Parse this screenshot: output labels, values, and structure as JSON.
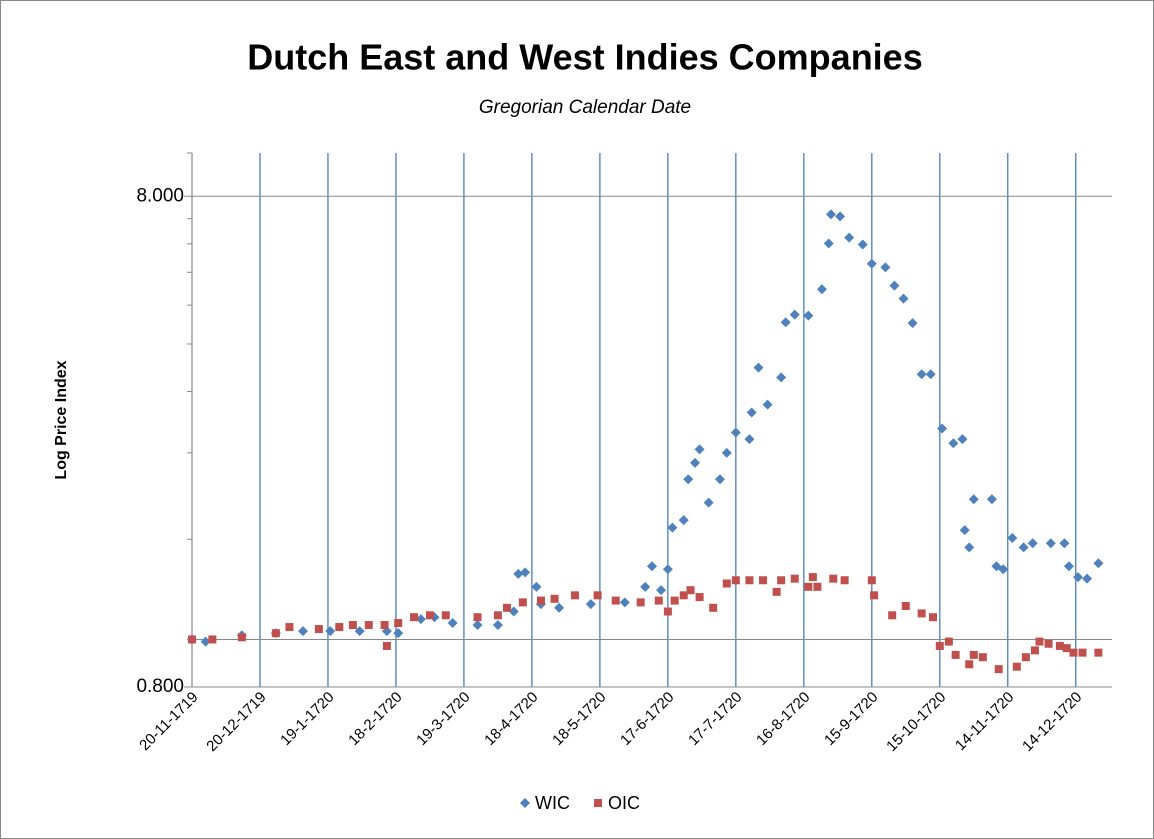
{
  "chart_data": {
    "type": "scatter",
    "title": "Dutch East and West Indies Companies",
    "subtitle": "Gregorian Calendar Date",
    "y_label": "Log Price Index",
    "log_y": true,
    "grid_x": true,
    "legend": "bottom",
    "xlim": [
      "20-11-1719",
      "30-12-1720"
    ],
    "xticks": [
      "20-11-1719",
      "20-12-1719",
      "19-1-1720",
      "18-2-1720",
      "19-3-1720",
      "18-4-1720",
      "18-5-1720",
      "17-6-1720",
      "17-7-1720",
      "16-8-1720",
      "15-9-1720",
      "15-10-1720",
      "14-11-1720",
      "14-12-1720"
    ],
    "ylim": [
      0.8,
      9.8
    ],
    "yticks": [
      {
        "value": 0.8,
        "label": "0.800"
      },
      {
        "value": 8,
        "label": "8.000"
      }
    ],
    "minor_yticks": [
      1.6,
      2.4,
      3.2,
      4,
      4.8,
      5.6,
      6.4,
      7.2
    ],
    "reference_line": 1,
    "series": [
      {
        "name": "WIC",
        "color": "#4f81bd",
        "marker": "diamond",
        "x": [
          "20-11-1719",
          "26-11-1719",
          "12-12-1719",
          "27-12-1719",
          "8-1-1720",
          "20-1-1720",
          "2-2-1720",
          "14-2-1720",
          "19-2-1720",
          "29-2-1720",
          "6-3-1720",
          "14-3-1720",
          "25-3-1720",
          "3-4-1720",
          "10-4-1720",
          "12-4-1720",
          "15-4-1720",
          "20-4-1720",
          "22-4-1720",
          "30-4-1720",
          "14-5-1720",
          "29-5-1720",
          "7-6-1720",
          "10-6-1720",
          "14-6-1720",
          "17-6-1720",
          "19-6-1720",
          "24-6-1720",
          "26-6-1720",
          "29-6-1720",
          "1-7-1720",
          "5-7-1720",
          "10-7-1720",
          "13-7-1720",
          "17-7-1720",
          "23-7-1720",
          "24-7-1720",
          "27-7-1720",
          "31-7-1720",
          "6-8-1720",
          "8-8-1720",
          "12-8-1720",
          "18-8-1720",
          "24-8-1720",
          "27-8-1720",
          "28-8-1720",
          "1-9-1720",
          "5-9-1720",
          "11-9-1720",
          "15-9-1720",
          "21-9-1720",
          "25-9-1720",
          "29-9-1720",
          "3-10-1720",
          "7-10-1720",
          "11-10-1720",
          "16-10-1720",
          "21-10-1720",
          "25-10-1720",
          "26-10-1720",
          "28-10-1720",
          "30-10-1720",
          "7-11-1720",
          "9-11-1720",
          "12-11-1720",
          "16-11-1720",
          "21-11-1720",
          "25-11-1720",
          "3-12-1720",
          "9-12-1720",
          "11-12-1720",
          "15-12-1720",
          "19-12-1720",
          "24-12-1720"
        ],
        "values": [
          1.0,
          0.99,
          1.02,
          1.03,
          1.04,
          1.04,
          1.04,
          1.04,
          1.03,
          1.1,
          1.11,
          1.08,
          1.07,
          1.07,
          1.14,
          1.36,
          1.37,
          1.28,
          1.18,
          1.16,
          1.18,
          1.19,
          1.28,
          1.41,
          1.26,
          1.39,
          1.69,
          1.75,
          2.12,
          2.29,
          2.44,
          1.9,
          2.12,
          2.4,
          2.64,
          2.56,
          2.9,
          3.58,
          3.01,
          3.42,
          4.43,
          4.59,
          4.57,
          5.17,
          6.41,
          7.35,
          7.28,
          6.59,
          6.38,
          5.83,
          5.73,
          5.26,
          4.95,
          4.41,
          3.47,
          3.47,
          2.69,
          2.51,
          2.56,
          1.67,
          1.54,
          1.93,
          1.93,
          1.41,
          1.39,
          1.61,
          1.54,
          1.57,
          1.57,
          1.57,
          1.41,
          1.34,
          1.33,
          1.43
        ]
      },
      {
        "name": "OIC",
        "color": "#c0504d",
        "marker": "square",
        "x": [
          "20-11-1719",
          "29-11-1719",
          "12-12-1719",
          "27-12-1719",
          "2-1-1720",
          "15-1-1720",
          "24-1-1720",
          "30-1-1720",
          "6-2-1720",
          "13-2-1720",
          "14-2-1720",
          "19-2-1720",
          "26-2-1720",
          "4-3-1720",
          "11-3-1720",
          "25-3-1720",
          "3-4-1720",
          "7-4-1720",
          "14-4-1720",
          "22-4-1720",
          "28-4-1720",
          "7-5-1720",
          "17-5-1720",
          "25-5-1720",
          "5-6-1720",
          "13-6-1720",
          "17-6-1720",
          "20-6-1720",
          "24-6-1720",
          "27-6-1720",
          "1-7-1720",
          "7-7-1720",
          "13-7-1720",
          "17-7-1720",
          "23-7-1720",
          "29-7-1720",
          "4-8-1720",
          "6-8-1720",
          "12-8-1720",
          "18-8-1720",
          "20-8-1720",
          "22-8-1720",
          "29-8-1720",
          "3-9-1720",
          "15-9-1720",
          "16-9-1720",
          "24-9-1720",
          "30-9-1720",
          "7-10-1720",
          "12-10-1720",
          "15-10-1720",
          "19-10-1720",
          "22-10-1720",
          "28-10-1720",
          "30-10-1720",
          "3-11-1720",
          "10-11-1720",
          "18-11-1720",
          "22-11-1720",
          "26-11-1720",
          "28-11-1720",
          "2-12-1720",
          "7-12-1720",
          "10-12-1720",
          "13-12-1720",
          "17-12-1720",
          "24-12-1720"
        ],
        "values": [
          1.0,
          1.0,
          1.01,
          1.03,
          1.06,
          1.05,
          1.06,
          1.07,
          1.07,
          1.07,
          0.97,
          1.08,
          1.11,
          1.12,
          1.12,
          1.11,
          1.12,
          1.16,
          1.19,
          1.2,
          1.21,
          1.23,
          1.23,
          1.2,
          1.19,
          1.2,
          1.14,
          1.2,
          1.23,
          1.26,
          1.22,
          1.16,
          1.3,
          1.32,
          1.32,
          1.32,
          1.25,
          1.32,
          1.33,
          1.28,
          1.34,
          1.28,
          1.33,
          1.32,
          1.32,
          1.23,
          1.12,
          1.17,
          1.13,
          1.11,
          0.97,
          0.99,
          0.93,
          0.89,
          0.93,
          0.92,
          0.87,
          0.88,
          0.92,
          0.95,
          0.99,
          0.98,
          0.97,
          0.96,
          0.94,
          0.94,
          0.94
        ]
      }
    ]
  }
}
